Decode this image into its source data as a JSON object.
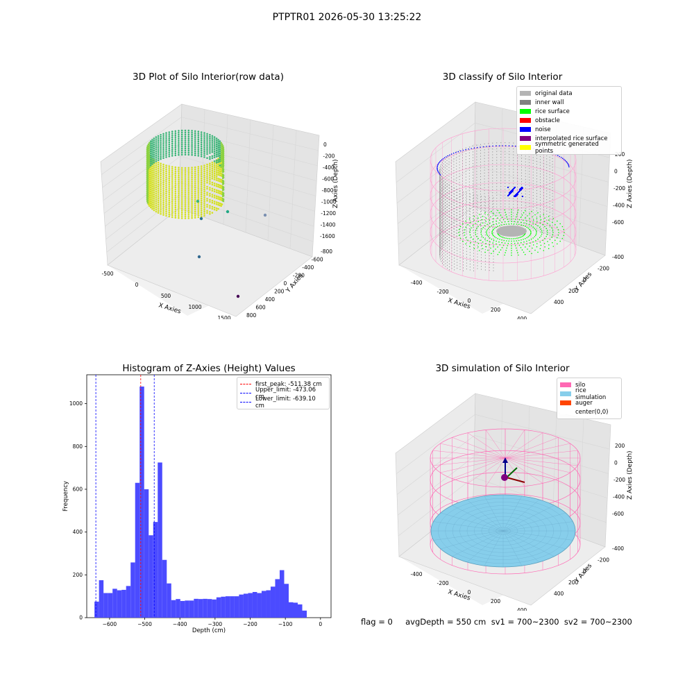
{
  "suptitle": "PTPTR01 2026-05-30 13:25:22",
  "panels": {
    "raw": {
      "title": "3D Plot of Silo Interior(row data)",
      "xlabel": "X Axies",
      "ylabel": "Y Axies",
      "zlabel": "Z Axies (Depth)",
      "xticks": [
        "-500",
        "0",
        "500",
        "1000",
        "1500"
      ],
      "yticks": [
        "-800",
        "-600",
        "-400",
        "-200",
        "0",
        "200",
        "400",
        "600",
        "800"
      ],
      "zticks": [
        "0",
        "-200",
        "-400",
        "-600",
        "-800",
        "-1000",
        "-1200",
        "-1400",
        "-1600"
      ]
    },
    "classify": {
      "title": "3D classify of Silo Interior",
      "xlabel": "X Axies",
      "ylabel": "Y Axies",
      "zlabel": "Z Axies (Depth)",
      "xticks": [
        "-400",
        "-200",
        "0",
        "200",
        "400"
      ],
      "yticks": [
        "-400",
        "-200",
        "0",
        "200",
        "400"
      ],
      "zticks": [
        "200",
        "0",
        "-200",
        "-400",
        "-600"
      ],
      "legend": [
        {
          "label": "original data",
          "color": "#b4b4b4"
        },
        {
          "label": "inner wall",
          "color": "#808080"
        },
        {
          "label": "rice surface",
          "color": "#00ff00"
        },
        {
          "label": "obstacle",
          "color": "#ff0000"
        },
        {
          "label": "noise",
          "color": "#0000ff"
        },
        {
          "label": "interpolated rice surface",
          "color": "#800080"
        },
        {
          "label": "symmetric generated points",
          "color": "#ffff00"
        }
      ]
    },
    "simulation": {
      "title": "3D simulation of Silo Interior",
      "xlabel": "X Axies",
      "ylabel": "Y Axies",
      "zlabel": "Z Axies (Depth)",
      "xticks": [
        "-400",
        "-200",
        "0",
        "200",
        "400"
      ],
      "yticks": [
        "-400",
        "-200",
        "0",
        "200",
        "400"
      ],
      "zticks": [
        "200",
        "0",
        "-200",
        "-400",
        "-600"
      ],
      "legend": [
        {
          "label": "silo",
          "color": "#ff69b4"
        },
        {
          "label": "rice simulation",
          "color": "#87ceeb"
        },
        {
          "label": "auger",
          "color": "#ff4500"
        },
        {
          "label": "center(0,0)",
          "color": "#ffffff"
        }
      ]
    }
  },
  "chart_data": {
    "type": "bar",
    "title": "Histogram of Z-Axies (Height) Values",
    "xlabel": "Depth (cm)",
    "ylabel": "Frequency",
    "xlim": [
      -665,
      30
    ],
    "ylim": [
      0,
      1135
    ],
    "xticks": [
      -600,
      -500,
      -400,
      -300,
      -200,
      -100,
      0
    ],
    "yticks": [
      0,
      200,
      400,
      600,
      800,
      1000
    ],
    "bar_color": "#4b4bff",
    "bin_start": -643,
    "bin_width": 12.85,
    "values": [
      75,
      175,
      115,
      115,
      135,
      128,
      130,
      148,
      258,
      630,
      1080,
      600,
      385,
      447,
      725,
      270,
      160,
      82,
      87,
      78,
      80,
      80,
      88,
      87,
      88,
      87,
      85,
      95,
      98,
      100,
      100,
      100,
      108,
      112,
      115,
      120,
      115,
      125,
      128,
      145,
      180,
      222,
      158,
      72,
      70,
      62,
      33
    ],
    "lines": [
      {
        "label": "first_peak: -511.38 cm",
        "x": -511.38,
        "color": "#ff0000"
      },
      {
        "label": "Upper_limit: -473.06 cm",
        "x": -473.06,
        "color": "#0000ff"
      },
      {
        "label": "Lower_limit: -639.10 cm",
        "x": -639.1,
        "color": "#0000ff"
      }
    ]
  },
  "footer": "flag = 0     avgDepth = 550 cm  sv1 = 700~2300  sv2 = 700~2300"
}
